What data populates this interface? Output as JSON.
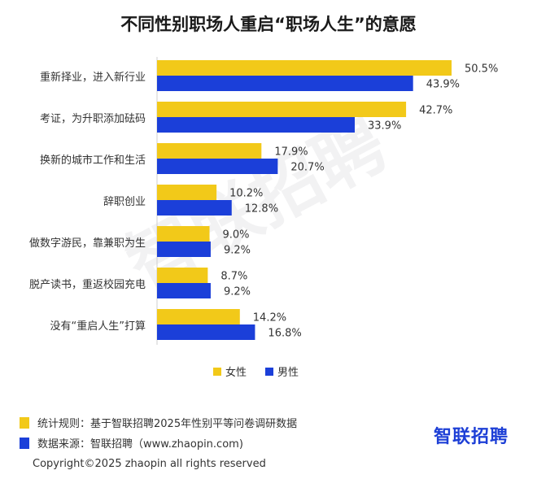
{
  "colors": {
    "female": "#f2c919",
    "male": "#1b3fd9"
  },
  "chart_data": {
    "type": "bar",
    "orientation": "horizontal",
    "title": "不同性别职场人重启“职场人生”的意愿",
    "categories": [
      "重新择业，进入新行业",
      "考证，为升职添加砝码",
      "换新的城市工作和生活",
      "辞职创业",
      "做数字游民，靠兼职为生",
      "脱产读书，重返校园充电",
      "没有“重启人生”打算"
    ],
    "series": [
      {
        "name": "女性",
        "values": [
          50.5,
          42.7,
          17.9,
          10.2,
          9.0,
          8.7,
          14.2
        ],
        "labels": [
          "50.5%",
          "42.7%",
          "17.9%",
          "10.2%",
          "9.0%",
          "8.7%",
          "14.2%"
        ]
      },
      {
        "name": "男性",
        "values": [
          43.9,
          33.9,
          20.7,
          12.8,
          9.2,
          9.2,
          16.8
        ],
        "labels": [
          "43.9%",
          "33.9%",
          "20.7%",
          "12.8%",
          "9.2%",
          "9.2%",
          "16.8%"
        ]
      }
    ],
    "xlim": [
      0,
      56
    ],
    "grid": false,
    "legend": "bottom-center"
  },
  "footer": {
    "note1": "统计规则：基于智联招聘2025年性别平等问卷调研数据",
    "note2": "数据来源：智联招聘（www.zhaopin.com)",
    "copyright": "Copyright©2025 zhaopin all rights reserved",
    "logo": "智联招聘",
    "watermark": "智联招聘"
  }
}
